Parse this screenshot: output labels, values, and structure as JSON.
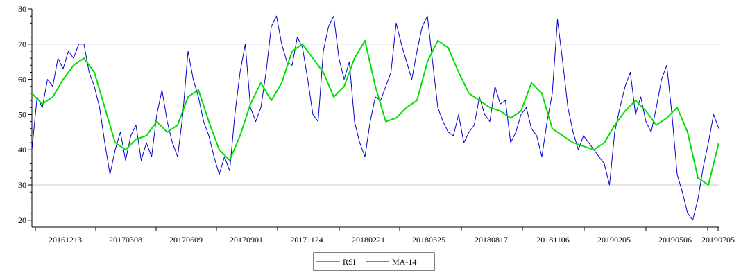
{
  "chart_data": {
    "type": "line",
    "title": "",
    "xlabel": "",
    "ylabel": "",
    "ylim": [
      18,
      80
    ],
    "y_ticks": [
      20,
      30,
      40,
      50,
      60,
      70,
      80
    ],
    "grid": "horizontal at 30 and 70",
    "legend_position": "bottom-center",
    "x_tick_labels": [
      "20161213",
      "20170308",
      "20170609",
      "20170901",
      "20171124",
      "20180221",
      "20180525",
      "20180817",
      "20181106",
      "20190205",
      "20190506",
      "20190705"
    ],
    "colors": {
      "rsi": "#0000cc",
      "ma": "#00e000",
      "grid": "#c8c8c8",
      "axis": "#000000"
    },
    "series": [
      {
        "name": "RSI",
        "x": [
          0,
          5,
          10,
          15,
          20,
          25,
          30,
          35,
          40,
          45,
          50,
          55,
          60,
          65,
          70,
          75,
          80,
          85,
          90,
          95,
          100,
          105,
          110,
          115,
          120,
          125,
          130,
          135,
          140,
          145,
          150,
          155,
          160,
          165,
          170,
          175,
          180,
          185,
          190,
          195,
          200,
          205,
          210,
          215,
          220,
          225,
          230,
          235,
          240,
          245,
          250,
          255,
          260,
          265,
          270,
          275,
          280,
          285,
          290,
          295,
          300,
          305,
          310,
          315,
          320,
          325,
          330,
          335,
          340,
          345,
          350,
          355,
          360,
          365,
          370,
          375,
          380,
          385,
          390,
          395,
          400,
          405,
          410,
          415,
          420,
          425,
          430,
          435,
          440,
          445,
          450,
          455,
          460,
          465,
          470,
          475,
          480,
          485,
          490,
          495,
          500,
          505,
          510,
          515,
          520,
          525,
          530,
          535,
          540,
          545,
          550,
          555,
          560,
          565,
          570,
          575,
          580,
          585,
          590,
          595,
          600,
          605,
          610,
          615,
          620,
          625,
          630,
          635,
          640,
          645,
          650,
          655,
          660
        ],
        "values": [
          40,
          55,
          52,
          60,
          58,
          66,
          63,
          68,
          66,
          70,
          70,
          62,
          58,
          52,
          42,
          33,
          40,
          45,
          37,
          44,
          47,
          37,
          42,
          38,
          50,
          57,
          48,
          42,
          38,
          50,
          68,
          60,
          55,
          48,
          44,
          38,
          33,
          38,
          34,
          50,
          62,
          70,
          52,
          48,
          52,
          62,
          75,
          78,
          70,
          65,
          64,
          72,
          69,
          60,
          50,
          48,
          68,
          75,
          78,
          66,
          60,
          65,
          48,
          42,
          38,
          48,
          55,
          54,
          58,
          62,
          76,
          70,
          65,
          60,
          68,
          75,
          78,
          65,
          52,
          48,
          45,
          44,
          50,
          42,
          45,
          47,
          55,
          50,
          48,
          58,
          53,
          54,
          42,
          45,
          50,
          52,
          46,
          44,
          38,
          48,
          56,
          77,
          65,
          52,
          45,
          40,
          44,
          42,
          40,
          38,
          36,
          30,
          45,
          52,
          58,
          62,
          50,
          55,
          48,
          45,
          52,
          60,
          64,
          50,
          33,
          28,
          22,
          20,
          26,
          35,
          42,
          50,
          46
        ]
      },
      {
        "name": "MA-14",
        "x": [
          0,
          10,
          20,
          30,
          40,
          50,
          60,
          70,
          80,
          90,
          100,
          110,
          120,
          130,
          140,
          150,
          160,
          170,
          180,
          190,
          200,
          210,
          220,
          230,
          240,
          250,
          260,
          270,
          280,
          290,
          300,
          310,
          320,
          330,
          340,
          350,
          360,
          370,
          380,
          390,
          400,
          410,
          420,
          430,
          440,
          450,
          460,
          470,
          480,
          490,
          500,
          510,
          520,
          530,
          540,
          550,
          560,
          570,
          580,
          590,
          600,
          610,
          620,
          630,
          640,
          650,
          660
        ],
        "values": [
          56,
          53,
          55,
          60,
          64,
          66,
          62,
          52,
          42,
          40,
          43,
          44,
          48,
          45,
          47,
          55,
          57,
          48,
          40,
          37,
          44,
          53,
          59,
          54,
          59,
          68,
          70,
          66,
          62,
          55,
          58,
          66,
          71,
          58,
          48,
          49,
          52,
          54,
          65,
          71,
          69,
          62,
          56,
          54,
          52,
          51,
          49,
          51,
          59,
          56,
          46,
          44,
          42,
          41,
          40,
          42,
          47,
          51,
          54,
          51,
          47,
          49,
          52,
          45,
          32,
          30,
          42
        ]
      }
    ]
  }
}
